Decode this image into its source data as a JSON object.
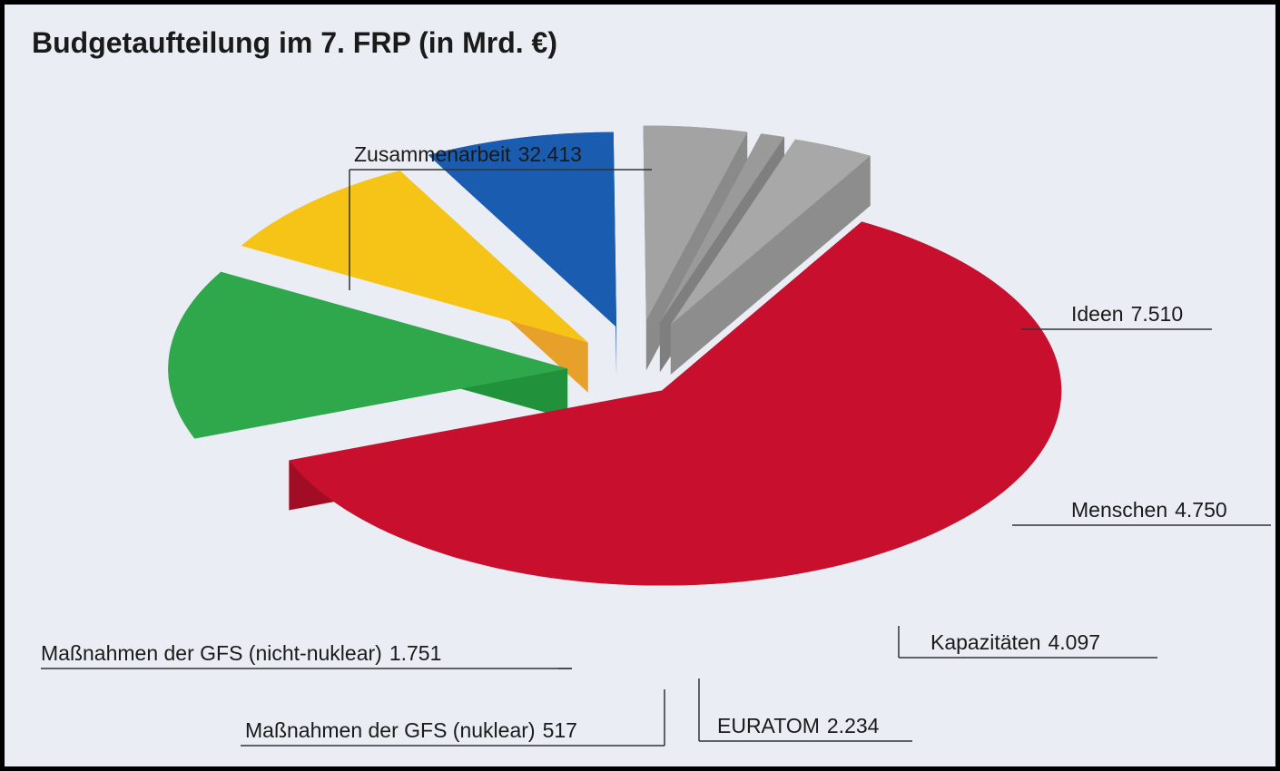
{
  "chart_data": {
    "type": "pie3d",
    "title": "Budgetaufteilung im 7. FRP  (in Mrd. €)",
    "categories": [
      "Zusammenarbeit",
      "Ideen",
      "Menschen",
      "Kapazitäten",
      "EURATOM",
      "Maßnahmen der GFS (nuklear)",
      "Maßnahmen der GFS (nicht-nuklear)"
    ],
    "values": [
      32413,
      7510,
      4750,
      4097,
      2234,
      517,
      1751
    ],
    "value_labels": [
      "32.413",
      "7.510",
      "4.750",
      "4.097",
      "2.234",
      "517",
      "1.751"
    ],
    "colors": [
      "#c8102e",
      "#2ea84a",
      "#f6c416",
      "#1a5cb0",
      "#a3a3a3",
      "#9a9a9a",
      "#a8a8a8"
    ],
    "side_colors": [
      "#a00d24",
      "#22913c",
      "#e7a12a",
      "#124a94",
      "#8a8a8a",
      "#7f7f7f",
      "#8d8d8d"
    ]
  }
}
